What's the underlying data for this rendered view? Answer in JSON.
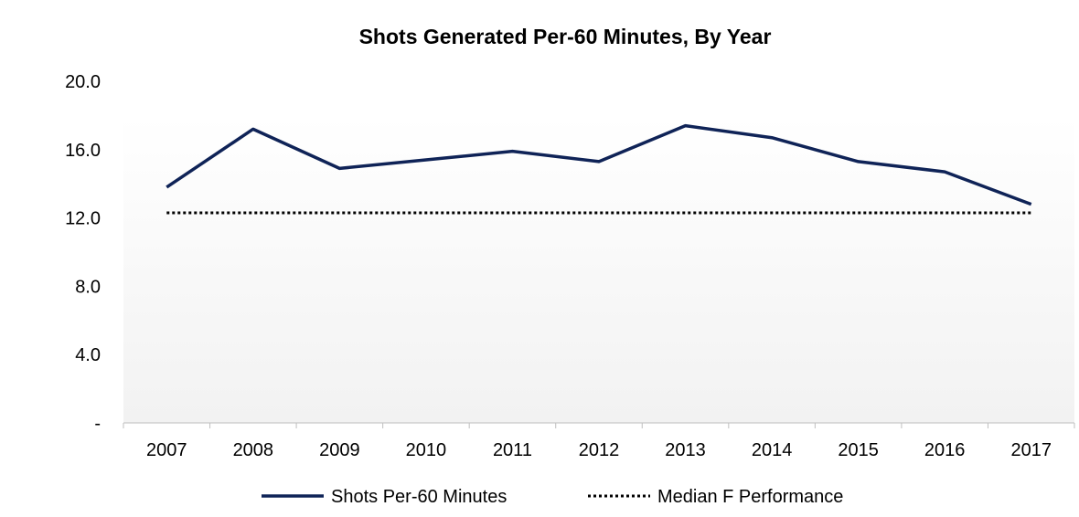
{
  "chart_data": {
    "type": "line",
    "title": "Shots Generated Per-60 Minutes, By Year",
    "xlabel": "",
    "ylabel": "",
    "categories": [
      "2007",
      "2008",
      "2009",
      "2010",
      "2011",
      "2012",
      "2013",
      "2014",
      "2015",
      "2016",
      "2017"
    ],
    "y_ticks": [
      "-",
      "4.0",
      "8.0",
      "12.0",
      "16.0",
      "20.0"
    ],
    "y_tick_values": [
      0,
      4,
      8,
      12,
      16,
      20
    ],
    "ylim": [
      0,
      20
    ],
    "grid": false,
    "legend_position": "bottom",
    "series": [
      {
        "name": "Shots Per-60 Minutes",
        "style": "solid",
        "color": "#0f2357",
        "values": [
          13.8,
          17.2,
          14.9,
          15.4,
          15.9,
          15.3,
          17.4,
          16.7,
          15.3,
          14.7,
          12.8
        ]
      },
      {
        "name": "Median F Performance",
        "style": "dotted",
        "color": "#000000",
        "values": [
          12.3,
          12.3,
          12.3,
          12.3,
          12.3,
          12.3,
          12.3,
          12.3,
          12.3,
          12.3,
          12.3
        ]
      }
    ],
    "background_gradient": [
      "#f2f2f2",
      "#ffffff"
    ]
  }
}
